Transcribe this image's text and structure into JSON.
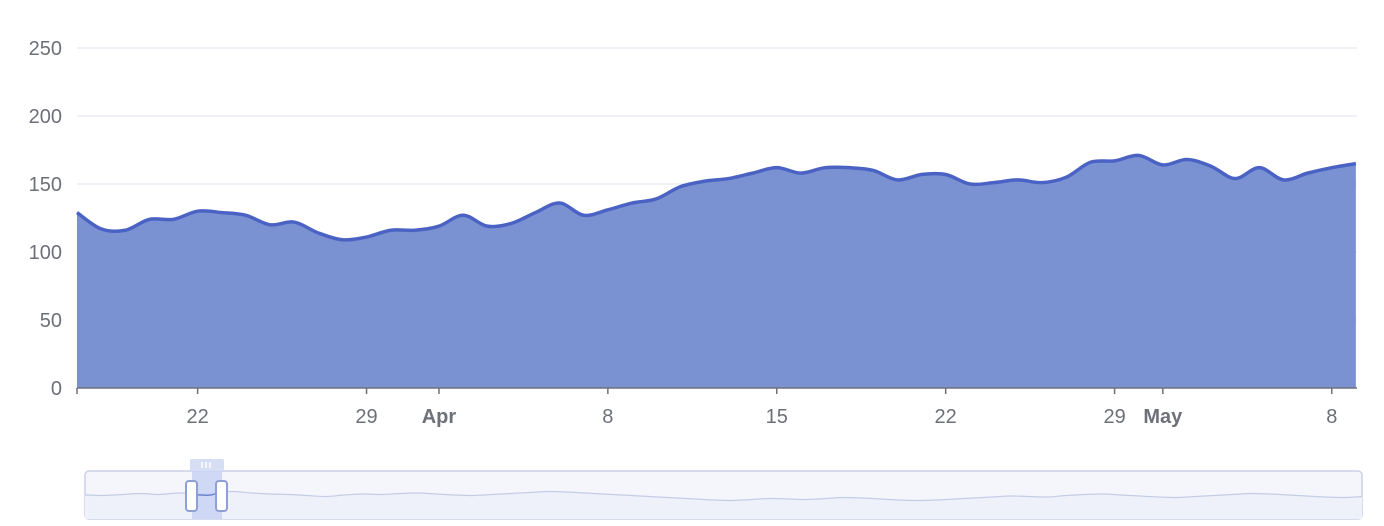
{
  "chart_data": {
    "type": "area",
    "title": "",
    "xlabel": "",
    "ylabel": "",
    "ylim": [
      0,
      250
    ],
    "yticks": [
      "0",
      "50",
      "100",
      "150",
      "200",
      "250"
    ],
    "xticks": [
      {
        "date": "2024-03-22",
        "label": "22",
        "major": false
      },
      {
        "date": "2024-03-29",
        "label": "29",
        "major": false
      },
      {
        "date": "2024-04-01",
        "label": "Apr",
        "major": true
      },
      {
        "date": "2024-04-08",
        "label": "8",
        "major": false
      },
      {
        "date": "2024-04-15",
        "label": "15",
        "major": false
      },
      {
        "date": "2024-04-22",
        "label": "22",
        "major": false
      },
      {
        "date": "2024-04-29",
        "label": "29",
        "major": false
      },
      {
        "date": "2024-05-01",
        "label": "May",
        "major": true
      },
      {
        "date": "2024-05-08",
        "label": "8",
        "major": false
      }
    ],
    "grid": true,
    "legend": "none",
    "colors": {
      "line": "#4a62c4",
      "fill": "#7b92d2",
      "grid": "#e0e3ef",
      "axis": "#6e7079"
    },
    "x": [
      "2024-03-17",
      "2024-03-18",
      "2024-03-19",
      "2024-03-20",
      "2024-03-21",
      "2024-03-22",
      "2024-03-23",
      "2024-03-24",
      "2024-03-25",
      "2024-03-26",
      "2024-03-27",
      "2024-03-28",
      "2024-03-29",
      "2024-03-30",
      "2024-03-31",
      "2024-04-01",
      "2024-04-02",
      "2024-04-03",
      "2024-04-04",
      "2024-04-05",
      "2024-04-06",
      "2024-04-07",
      "2024-04-08",
      "2024-04-09",
      "2024-04-10",
      "2024-04-11",
      "2024-04-12",
      "2024-04-13",
      "2024-04-14",
      "2024-04-15",
      "2024-04-16",
      "2024-04-17",
      "2024-04-18",
      "2024-04-19",
      "2024-04-20",
      "2024-04-21",
      "2024-04-22",
      "2024-04-23",
      "2024-04-24",
      "2024-04-25",
      "2024-04-26",
      "2024-04-27",
      "2024-04-28",
      "2024-04-29",
      "2024-04-30",
      "2024-05-01",
      "2024-05-02",
      "2024-05-03",
      "2024-05-04",
      "2024-05-05",
      "2024-05-06",
      "2024-05-07",
      "2024-05-08",
      "2024-05-09"
    ],
    "series": [
      {
        "values": [
          129,
          117,
          116,
          124,
          124,
          130,
          129,
          127,
          120,
          122,
          114,
          109,
          111,
          116,
          116,
          119,
          127,
          119,
          121,
          129,
          136,
          127,
          131,
          136,
          139,
          148,
          152,
          154,
          158,
          162,
          158,
          162,
          162,
          160,
          153,
          157,
          157,
          150,
          151,
          153,
          151,
          155,
          166,
          167,
          171,
          164,
          168,
          163,
          154,
          162,
          153,
          158,
          162,
          165
        ]
      }
    ],
    "navigator": {
      "values": [
        140,
        139,
        141,
        143,
        141,
        144,
        142,
        145,
        147,
        144,
        142,
        141,
        139,
        137,
        140,
        142,
        141,
        143,
        144,
        142,
        140,
        139,
        141,
        143,
        145,
        147,
        146,
        144,
        142,
        140,
        138,
        136,
        134,
        132,
        130,
        129,
        131,
        133,
        132,
        131,
        133,
        135,
        134,
        132,
        130,
        129,
        130,
        132,
        134,
        136,
        138,
        137,
        136,
        139,
        141,
        142,
        140,
        138,
        136,
        135,
        137,
        139,
        141,
        143,
        142,
        140,
        138,
        136,
        135,
        137
      ]
    }
  }
}
